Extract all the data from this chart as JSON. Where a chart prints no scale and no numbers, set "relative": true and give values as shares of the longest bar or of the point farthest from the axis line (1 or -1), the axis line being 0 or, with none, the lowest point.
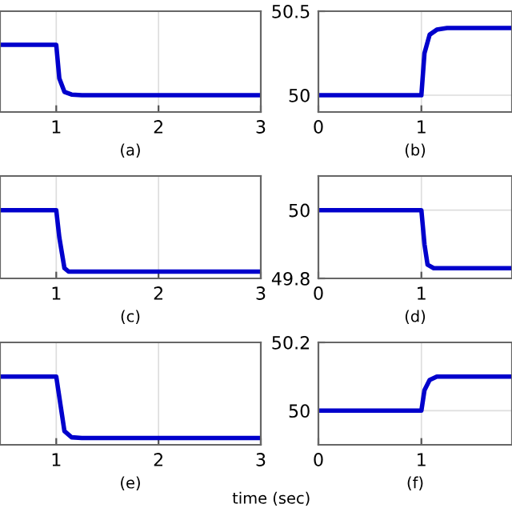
{
  "chart_data": [
    {
      "type": "line",
      "xlabel": "(a)",
      "relative": true,
      "xlim": [
        0.45,
        3
      ],
      "xticks": [
        1,
        2,
        3
      ],
      "tick_labels": "x",
      "grid": "x",
      "x": [
        0.45,
        1,
        1.03,
        1.08,
        1.15,
        1.25,
        3
      ],
      "series": [
        {
          "color": "#0000cc",
          "values": [
            1,
            1,
            0.5,
            0.3,
            0.26,
            0.25,
            0.25
          ]
        }
      ]
    },
    {
      "type": "line",
      "xlabel": "(b)",
      "xlim": [
        0,
        1.88
      ],
      "xticks": [
        0,
        1
      ],
      "ylim": [
        49.9,
        50.5
      ],
      "yticks": [
        50,
        50.5
      ],
      "grid": true,
      "x": [
        0,
        1,
        1.03,
        1.08,
        1.15,
        1.25,
        1.88
      ],
      "series": [
        {
          "color": "#0000cc",
          "values": [
            50,
            50,
            50.25,
            50.36,
            50.39,
            50.4,
            50.4
          ]
        }
      ]
    },
    {
      "type": "line",
      "xlabel": "(c)",
      "relative": true,
      "xlim": [
        0.45,
        3
      ],
      "xticks": [
        1,
        2,
        3
      ],
      "tick_labels": "x",
      "grid": "x",
      "x": [
        0.45,
        1,
        1.03,
        1.08,
        1.12,
        1.25,
        3
      ],
      "series": [
        {
          "color": "#0000cc",
          "values": [
            1,
            1,
            0.6,
            0.15,
            0.1,
            0.1,
            0.1
          ]
        }
      ]
    },
    {
      "type": "line",
      "xlabel": "(d)",
      "xlim": [
        0,
        1.88
      ],
      "xticks": [
        0,
        1
      ],
      "ylim": [
        49.8,
        50.1
      ],
      "yticks": [
        49.8,
        50
      ],
      "grid": true,
      "x": [
        0,
        1,
        1.03,
        1.06,
        1.12,
        1.25,
        1.88
      ],
      "series": [
        {
          "color": "#0000cc",
          "values": [
            50,
            50,
            49.9,
            49.84,
            49.83,
            49.83,
            49.83
          ]
        }
      ]
    },
    {
      "type": "line",
      "xlabel": "(e)",
      "relative": true,
      "xlim": [
        0.45,
        3
      ],
      "xticks": [
        1,
        2,
        3
      ],
      "tick_labels": "x",
      "grid": "x",
      "annotations": [
        "time (sec)"
      ],
      "x": [
        0.45,
        1,
        1.04,
        1.08,
        1.15,
        1.25,
        3
      ],
      "series": [
        {
          "color": "#0000cc",
          "values": [
            1,
            1,
            0.6,
            0.2,
            0.11,
            0.1,
            0.1
          ]
        }
      ]
    },
    {
      "type": "line",
      "xlabel": "(f)",
      "xlim": [
        0,
        1.88
      ],
      "xticks": [
        0,
        1
      ],
      "ylim": [
        49.9,
        50.2
      ],
      "yticks": [
        50,
        50.2
      ],
      "grid": true,
      "x": [
        0,
        1,
        1.03,
        1.08,
        1.15,
        1.25,
        1.88
      ],
      "series": [
        {
          "color": "#0000cc",
          "values": [
            50,
            50,
            50.06,
            50.09,
            50.1,
            50.1,
            50.1
          ]
        }
      ]
    }
  ]
}
